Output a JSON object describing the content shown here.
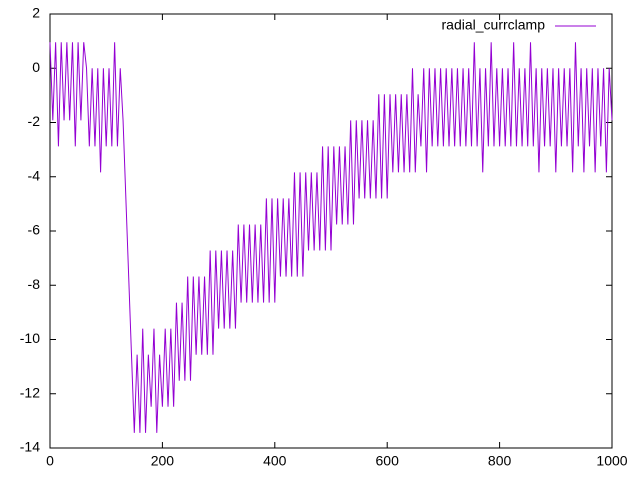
{
  "chart_data": {
    "type": "line",
    "x": [
      0,
      5,
      10,
      15,
      20,
      25,
      30,
      35,
      40,
      45,
      50,
      55,
      60,
      65,
      70,
      75,
      80,
      85,
      90,
      95,
      100,
      105,
      110,
      115,
      120,
      125,
      130,
      135,
      140,
      145,
      150,
      155,
      160,
      165,
      170,
      175,
      180,
      185,
      190,
      195,
      200,
      205,
      210,
      215,
      220,
      225,
      230,
      235,
      240,
      245,
      250,
      255,
      260,
      265,
      270,
      275,
      280,
      285,
      290,
      295,
      300,
      305,
      310,
      315,
      320,
      325,
      330,
      335,
      340,
      345,
      350,
      355,
      360,
      365,
      370,
      375,
      380,
      385,
      390,
      395,
      400,
      405,
      410,
      415,
      420,
      425,
      430,
      435,
      440,
      445,
      450,
      455,
      460,
      465,
      470,
      475,
      480,
      485,
      490,
      495,
      500,
      505,
      510,
      515,
      520,
      525,
      530,
      535,
      540,
      545,
      550,
      555,
      560,
      565,
      570,
      575,
      580,
      585,
      590,
      595,
      600,
      605,
      610,
      615,
      620,
      625,
      630,
      635,
      640,
      645,
      650,
      655,
      660,
      665,
      670,
      675,
      680,
      685,
      690,
      695,
      700,
      705,
      710,
      715,
      720,
      725,
      730,
      735,
      740,
      745,
      750,
      755,
      760,
      765,
      770,
      775,
      780,
      785,
      790,
      795,
      800,
      805,
      810,
      815,
      820,
      825,
      830,
      835,
      840,
      845,
      850,
      855,
      860,
      865,
      870,
      875,
      880,
      885,
      890,
      895,
      900,
      905,
      910,
      915,
      920,
      925,
      930,
      935,
      940,
      945,
      950,
      955,
      960,
      965,
      970,
      975,
      980,
      985,
      990,
      995,
      1000
    ],
    "series": [
      {
        "name": "radial_currclamp",
        "color": "#9400d3",
        "values": [
          0.96,
          -1.92,
          0.96,
          -2.88,
          0.96,
          -1.92,
          0.96,
          -1.92,
          0.96,
          -2.88,
          0.96,
          -1.92,
          0.96,
          0,
          -2.88,
          0,
          -2.88,
          0,
          -3.84,
          0,
          -2.88,
          0,
          -2.88,
          0.96,
          -2.88,
          0,
          -1.92,
          -4.8,
          -7.68,
          -10.56,
          -13.44,
          -10.56,
          -13.44,
          -9.6,
          -13.44,
          -10.56,
          -12.48,
          -9.6,
          -13.44,
          -10.56,
          -12.48,
          -9.6,
          -12.48,
          -9.6,
          -12.48,
          -8.64,
          -11.52,
          -8.64,
          -11.52,
          -7.68,
          -11.52,
          -7.68,
          -10.56,
          -7.68,
          -10.56,
          -7.68,
          -10.56,
          -6.72,
          -10.56,
          -6.72,
          -9.6,
          -6.72,
          -9.6,
          -6.72,
          -9.6,
          -6.72,
          -9.6,
          -5.76,
          -8.64,
          -5.76,
          -8.64,
          -5.76,
          -8.64,
          -5.76,
          -8.64,
          -5.76,
          -8.64,
          -4.8,
          -8.64,
          -4.8,
          -8.64,
          -4.8,
          -7.68,
          -4.8,
          -7.68,
          -4.8,
          -7.68,
          -3.84,
          -7.68,
          -3.84,
          -7.68,
          -3.84,
          -6.72,
          -3.84,
          -6.72,
          -3.84,
          -6.72,
          -2.88,
          -6.72,
          -2.88,
          -6.72,
          -2.88,
          -5.76,
          -2.88,
          -5.76,
          -2.88,
          -5.76,
          -1.92,
          -5.76,
          -1.92,
          -4.8,
          -1.92,
          -4.8,
          -1.92,
          -4.8,
          -1.92,
          -4.8,
          -0.96,
          -4.8,
          -0.96,
          -4.8,
          -0.96,
          -3.84,
          -0.96,
          -3.84,
          -0.96,
          -3.84,
          -0.96,
          -3.84,
          0,
          -3.84,
          -0.96,
          -2.88,
          0,
          -3.84,
          0,
          -2.88,
          0,
          -2.88,
          0,
          -2.88,
          0,
          -2.88,
          0,
          -2.88,
          0,
          -2.88,
          0,
          -2.88,
          0,
          -2.88,
          0.96,
          -2.88,
          0,
          -3.84,
          0,
          -2.88,
          0.96,
          -2.88,
          0,
          -2.88,
          0,
          -2.88,
          0,
          -2.88,
          0.96,
          -2.88,
          0,
          -2.88,
          0,
          -2.88,
          0.96,
          -2.88,
          0,
          -3.84,
          0,
          -2.88,
          0,
          -2.88,
          0,
          -3.84,
          0,
          -2.88,
          0,
          -2.88,
          0,
          -3.84,
          0.96,
          -2.88,
          0,
          -3.84,
          0,
          -2.88,
          0,
          -3.84,
          0,
          -2.88,
          0,
          -3.84,
          0,
          -1.92
        ]
      }
    ],
    "xlim": [
      0,
      1000
    ],
    "ylim": [
      -14,
      2
    ],
    "xticks": [
      0,
      200,
      400,
      600,
      800,
      1000
    ],
    "yticks": [
      -14,
      -12,
      -10,
      -8,
      -6,
      -4,
      -2,
      0,
      2
    ],
    "grid": false,
    "legend": "top-right"
  }
}
